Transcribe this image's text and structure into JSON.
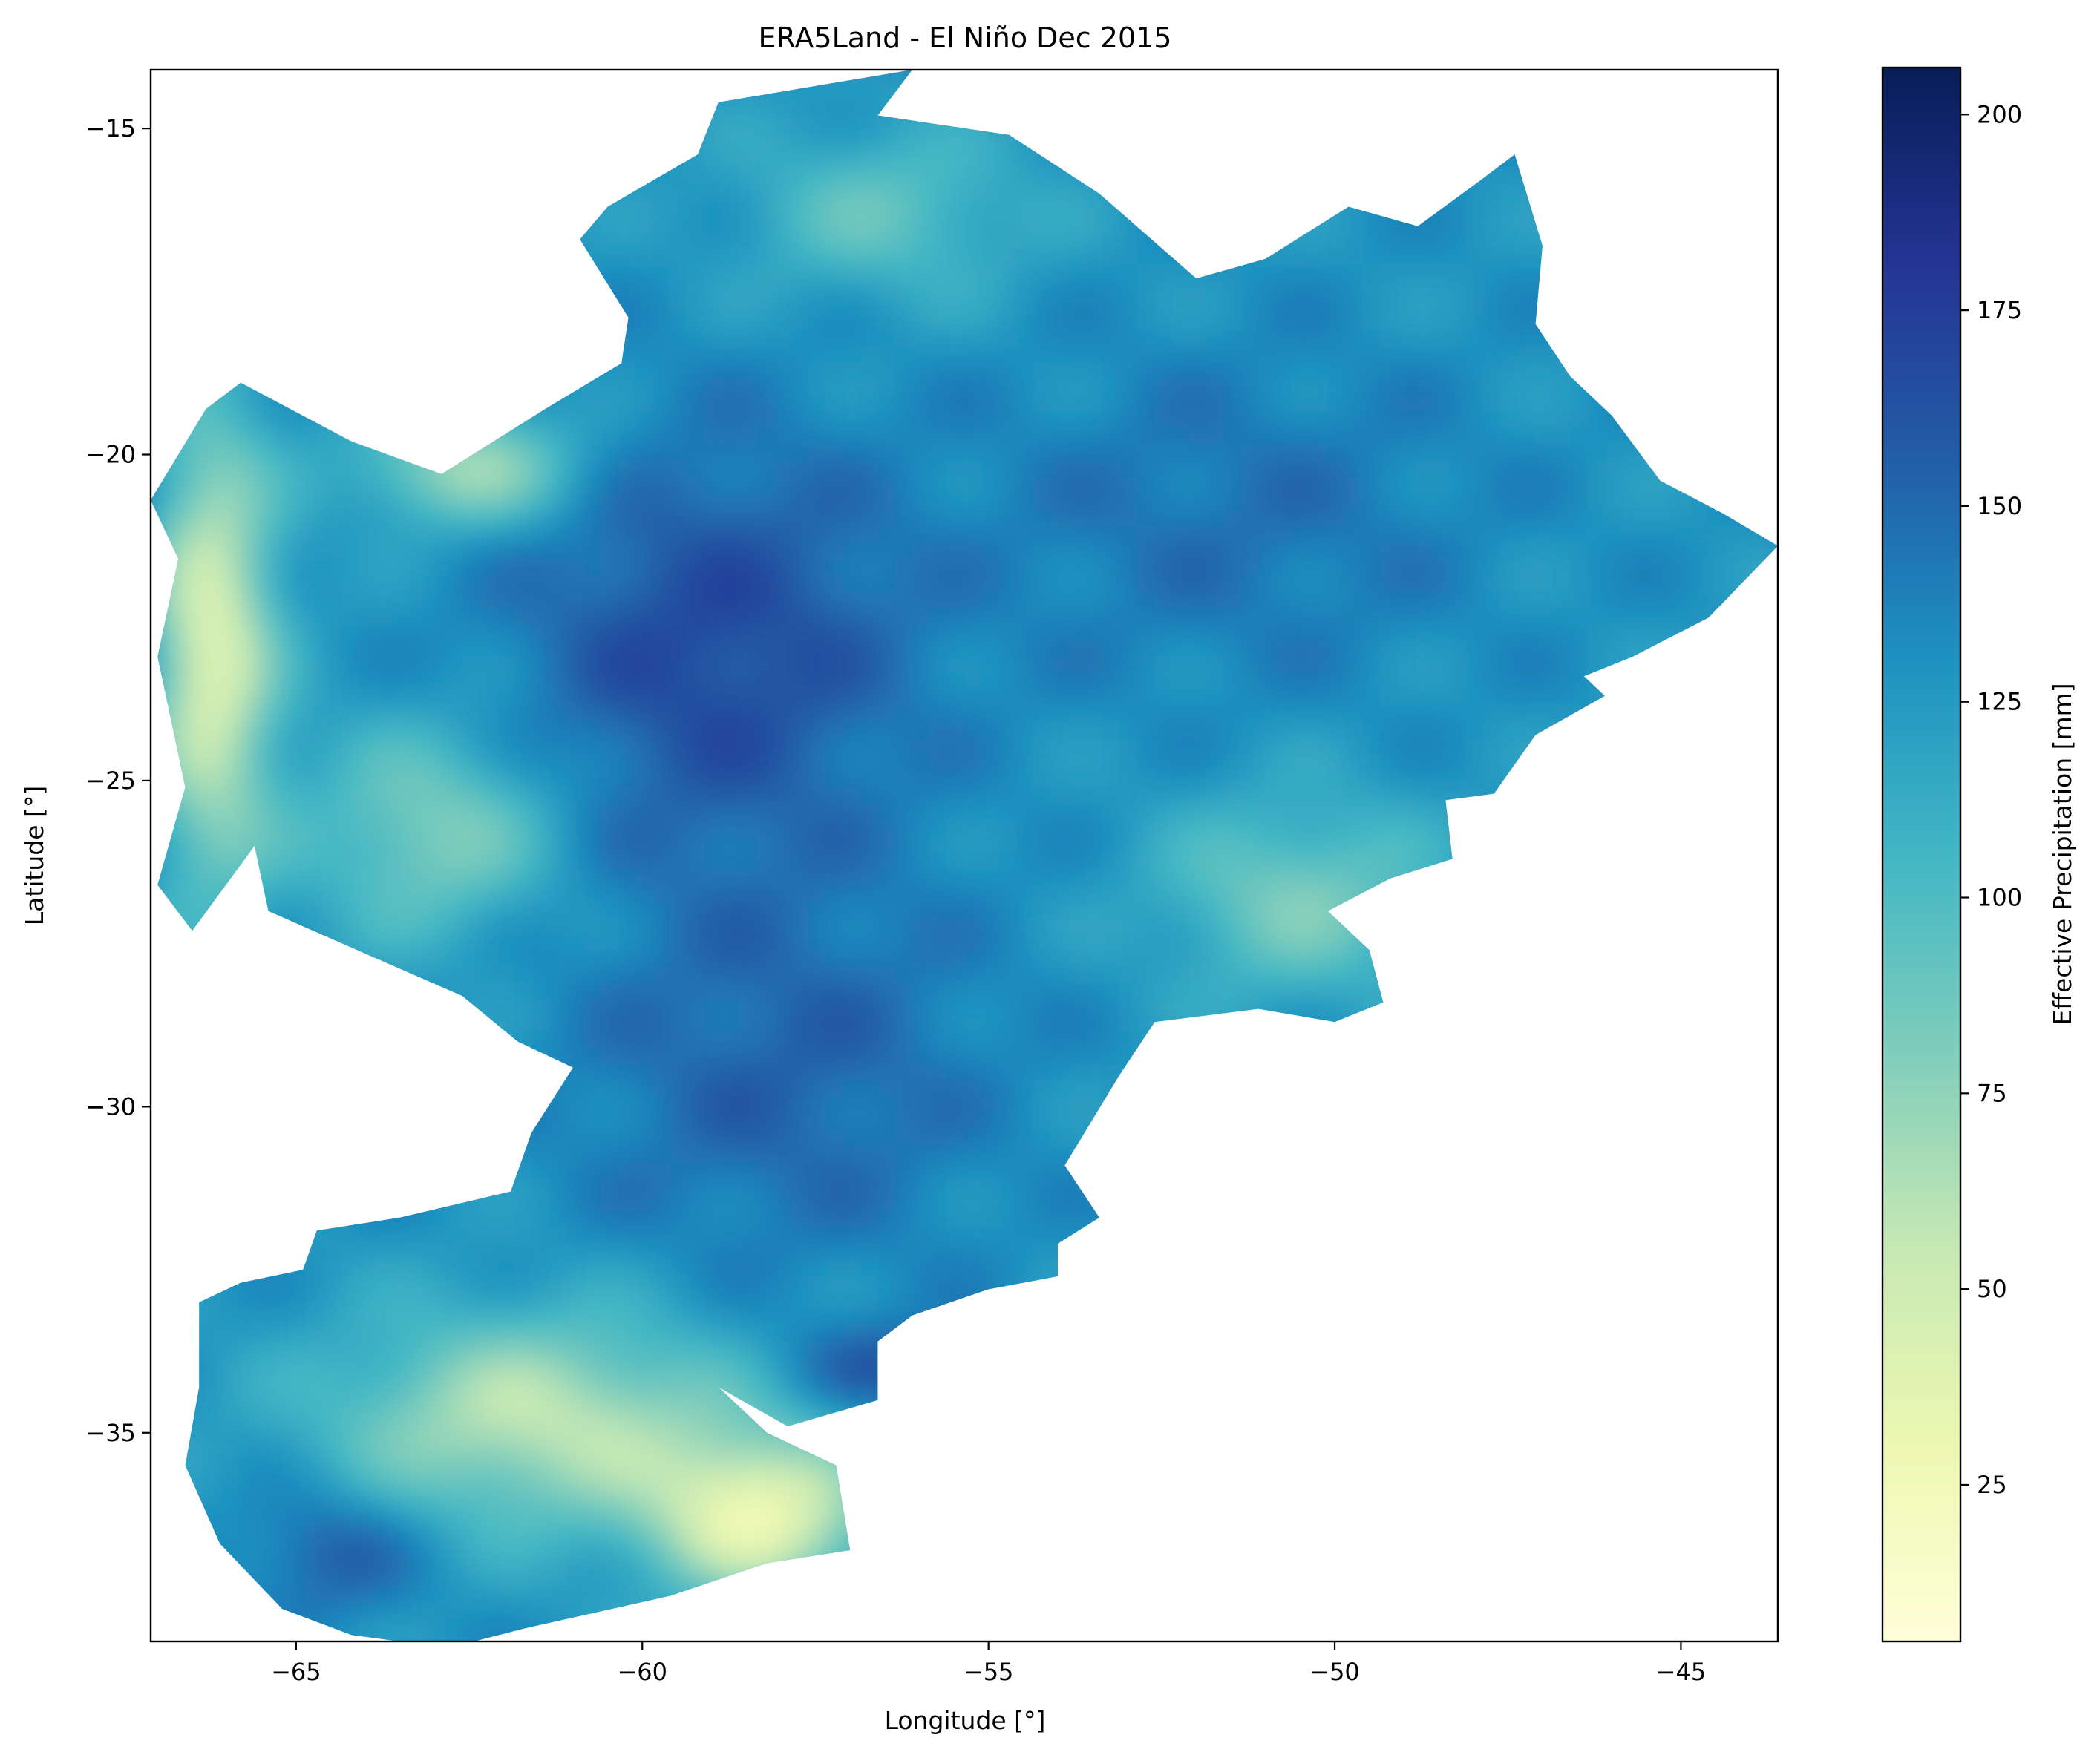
{
  "chart_data": {
    "type": "heatmap",
    "title": "ERA5Land - El Niño Dec 2015",
    "xlabel": "Longitude [°]",
    "ylabel": "Latitude [°]",
    "xlim": [
      -67.1,
      -43.6
    ],
    "ylim": [
      -38.2,
      -14.1
    ],
    "x_ticks": [
      -65,
      -60,
      -55,
      -50,
      -45
    ],
    "x_tick_labels": [
      "−65",
      "−60",
      "−55",
      "−50",
      "−45"
    ],
    "y_ticks": [
      -15,
      -20,
      -25,
      -30,
      -35
    ],
    "y_tick_labels": [
      "−15",
      "−20",
      "−25",
      "−30",
      "−35"
    ],
    "colorbar": {
      "label": "Effective Precipitation [mm]",
      "colormap": "YlGnBu",
      "range": [
        5,
        206
      ],
      "ticks": [
        25,
        50,
        75,
        100,
        125,
        150,
        175,
        200
      ],
      "tick_labels": [
        "25",
        "50",
        "75",
        "100",
        "125",
        "150",
        "175",
        "200"
      ],
      "colors": [
        "#ffffd9",
        "#edf8b1",
        "#c7e9b4",
        "#7fcdbb",
        "#41b6c4",
        "#1d91c0",
        "#225ea8",
        "#253494",
        "#081d58"
      ]
    },
    "grid": false,
    "region": {
      "description_values_mm": "approximate gridded effective precipitation",
      "boundary": [
        [
          -58.9,
          -14.6
        ],
        [
          -56.1,
          -14.1
        ],
        [
          -56.6,
          -14.8
        ],
        [
          -54.7,
          -15.1
        ],
        [
          -53.4,
          -16.0
        ],
        [
          -52.0,
          -17.3
        ],
        [
          -51.0,
          -17.0
        ],
        [
          -49.8,
          -16.2
        ],
        [
          -48.8,
          -16.5
        ],
        [
          -47.9,
          -15.8
        ],
        [
          -47.4,
          -15.4
        ],
        [
          -47.0,
          -16.8
        ],
        [
          -47.1,
          -18.0
        ],
        [
          -46.6,
          -18.8
        ],
        [
          -46.0,
          -19.4
        ],
        [
          -45.3,
          -20.4
        ],
        [
          -44.4,
          -20.9
        ],
        [
          -43.6,
          -21.4
        ],
        [
          -44.6,
          -22.5
        ],
        [
          -45.7,
          -23.1
        ],
        [
          -46.4,
          -23.4
        ],
        [
          -46.1,
          -23.7
        ],
        [
          -47.1,
          -24.3
        ],
        [
          -47.7,
          -25.2
        ],
        [
          -48.4,
          -25.3
        ],
        [
          -48.3,
          -26.2
        ],
        [
          -49.2,
          -26.5
        ],
        [
          -50.1,
          -27.0
        ],
        [
          -49.5,
          -27.6
        ],
        [
          -49.3,
          -28.4
        ],
        [
          -50.0,
          -28.7
        ],
        [
          -51.1,
          -28.5
        ],
        [
          -52.6,
          -28.7
        ],
        [
          -53.1,
          -29.5
        ],
        [
          -53.5,
          -30.2
        ],
        [
          -53.9,
          -30.9
        ],
        [
          -53.4,
          -31.7
        ],
        [
          -54.0,
          -32.1
        ],
        [
          -54.0,
          -32.6
        ],
        [
          -55.0,
          -32.8
        ],
        [
          -56.1,
          -33.2
        ],
        [
          -56.6,
          -33.6
        ],
        [
          -56.6,
          -34.5
        ],
        [
          -57.9,
          -34.9
        ],
        [
          -58.9,
          -34.3
        ],
        [
          -58.2,
          -35.0
        ],
        [
          -57.2,
          -35.5
        ],
        [
          -57.0,
          -36.8
        ],
        [
          -58.2,
          -37.0
        ],
        [
          -59.6,
          -37.5
        ],
        [
          -61.7,
          -38.0
        ],
        [
          -62.8,
          -38.3
        ],
        [
          -64.2,
          -38.1
        ],
        [
          -65.2,
          -37.7
        ],
        [
          -66.1,
          -36.7
        ],
        [
          -66.6,
          -35.5
        ],
        [
          -66.4,
          -34.3
        ],
        [
          -66.4,
          -33.0
        ],
        [
          -65.8,
          -32.7
        ],
        [
          -64.9,
          -32.5
        ],
        [
          -64.7,
          -31.9
        ],
        [
          -63.5,
          -31.7
        ],
        [
          -61.9,
          -31.3
        ],
        [
          -61.6,
          -30.4
        ],
        [
          -61.0,
          -29.4
        ],
        [
          -61.8,
          -29.0
        ],
        [
          -62.6,
          -28.3
        ],
        [
          -63.9,
          -27.7
        ],
        [
          -65.4,
          -27.0
        ],
        [
          -65.6,
          -26.0
        ],
        [
          -66.5,
          -27.3
        ],
        [
          -67.0,
          -26.6
        ],
        [
          -66.6,
          -25.1
        ],
        [
          -67.0,
          -23.1
        ],
        [
          -66.7,
          -21.6
        ],
        [
          -67.1,
          -20.7
        ],
        [
          -66.3,
          -19.3
        ],
        [
          -65.8,
          -18.9
        ],
        [
          -64.2,
          -19.8
        ],
        [
          -62.9,
          -20.3
        ],
        [
          -61.4,
          -19.3
        ],
        [
          -60.3,
          -18.6
        ],
        [
          -60.2,
          -17.9
        ],
        [
          -60.9,
          -16.7
        ],
        [
          -60.5,
          -16.2
        ],
        [
          -59.2,
          -15.4
        ]
      ]
    }
  }
}
